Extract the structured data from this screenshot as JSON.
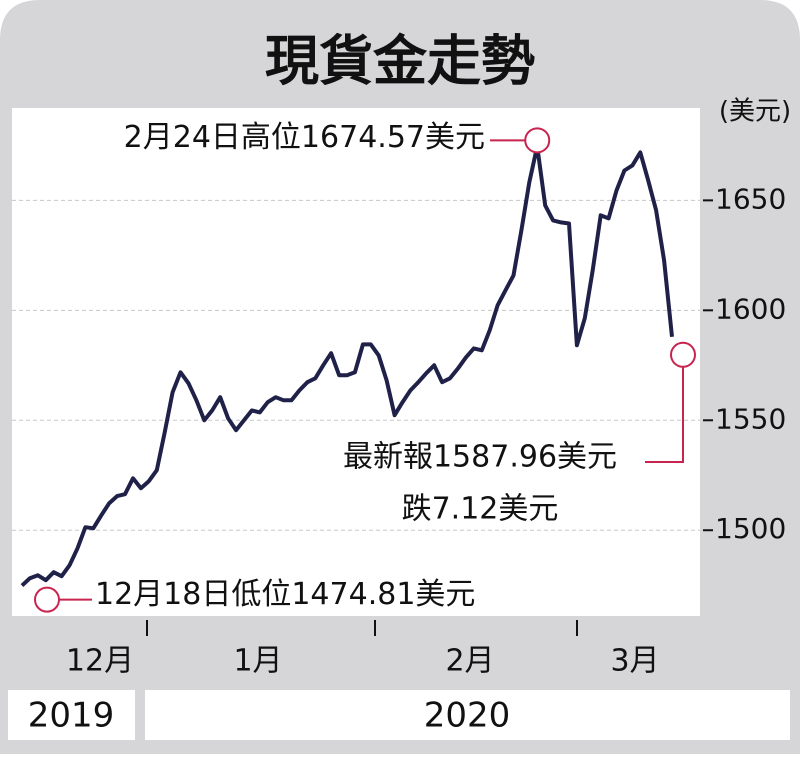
{
  "chart_data": {
    "type": "line",
    "title": "現貨金走勢",
    "y_unit": "(美元)",
    "values": [
      1474.81,
      1478.2,
      1479.5,
      1477.3,
      1480.9,
      1479.1,
      1484.1,
      1491.8,
      1501.4,
      1500.9,
      1506.8,
      1512.3,
      1515.5,
      1516.4,
      1523.6,
      1519.1,
      1522.3,
      1527.3,
      1544.5,
      1562.7,
      1571.8,
      1566.8,
      1559.1,
      1550.0,
      1554.5,
      1560.5,
      1550.9,
      1545.5,
      1550.0,
      1554.5,
      1553.6,
      1558.2,
      1560.5,
      1559.1,
      1559.1,
      1563.6,
      1567.3,
      1569.1,
      1575.0,
      1580.5,
      1570.5,
      1570.5,
      1571.8,
      1584.5,
      1584.5,
      1579.5,
      1568.2,
      1552.3,
      1558.2,
      1563.6,
      1567.3,
      1571.4,
      1575.0,
      1567.3,
      1569.1,
      1573.6,
      1578.6,
      1582.7,
      1581.8,
      1590.9,
      1602.3,
      1609.1,
      1615.9,
      1636.4,
      1658.2,
      1674.57,
      1647.7,
      1640.9,
      1640.0,
      1639.5,
      1584.1,
      1596.4,
      1618.2,
      1643.2,
      1641.8,
      1654.5,
      1663.6,
      1665.9,
      1671.8,
      1659.1,
      1645.5,
      1622.7,
      1587.96
    ],
    "color": "#1f2148",
    "ylim": [
      1461,
      1692
    ],
    "yticks": [
      1500,
      1550,
      1600,
      1650
    ],
    "grid": true,
    "month_labels": [
      "12月",
      "1月",
      "2月",
      "3月"
    ],
    "year_labels": [
      "2019",
      "2020"
    ],
    "annotations": {
      "high": "2月24日高位1674.57美元",
      "low": "12月18日低位1474.81美元",
      "latest": "最新報1587.96美元",
      "change": "跌7.12美元"
    }
  }
}
